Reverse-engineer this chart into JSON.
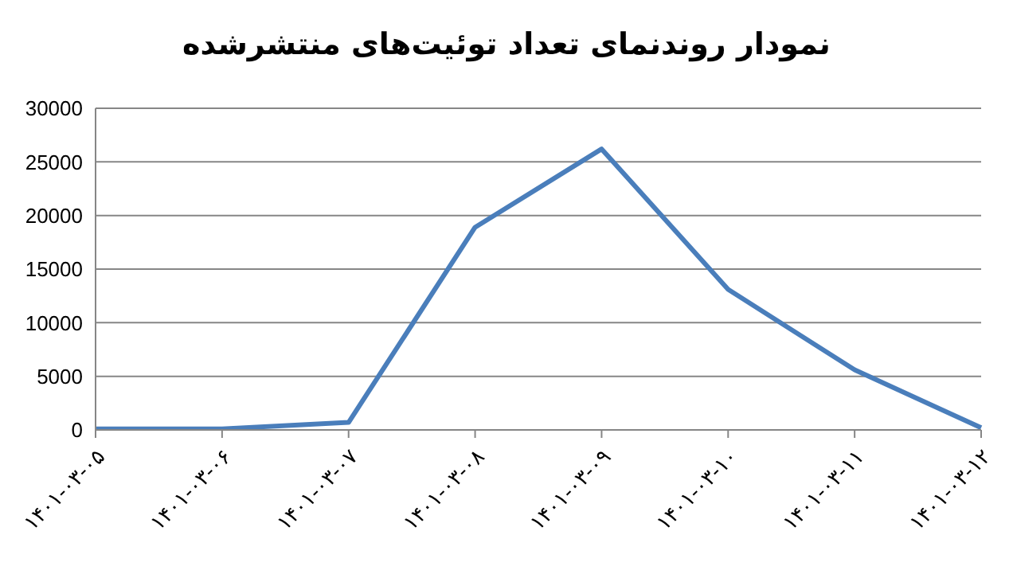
{
  "chart_data": {
    "type": "line",
    "title": "نمودار روندنمای تعداد توئیت‌های منتشرشده",
    "categories": [
      "۱۴۰۱-۰۳-۰۵",
      "۱۴۰۱-۰۳-۰۶",
      "۱۴۰۱-۰۳-۰۷",
      "۱۴۰۱-۰۳-۰۸",
      "۱۴۰۱-۰۳-۰۹",
      "۱۴۰۱-۰۳-۱۰",
      "۱۴۰۱-۰۳-۱۱",
      "۱۴۰۱-۰۳-۱۲"
    ],
    "series": [
      {
        "color": "#4a7ebb",
        "values": [
          100,
          100,
          700,
          18900,
          26200,
          13100,
          5600,
          200
        ]
      }
    ],
    "ylim": [
      0,
      30000
    ],
    "yticks": [
      0,
      5000,
      10000,
      15000,
      20000,
      25000,
      30000
    ],
    "grid": "y",
    "marker": "none",
    "line_style": "solid",
    "legend": false
  }
}
